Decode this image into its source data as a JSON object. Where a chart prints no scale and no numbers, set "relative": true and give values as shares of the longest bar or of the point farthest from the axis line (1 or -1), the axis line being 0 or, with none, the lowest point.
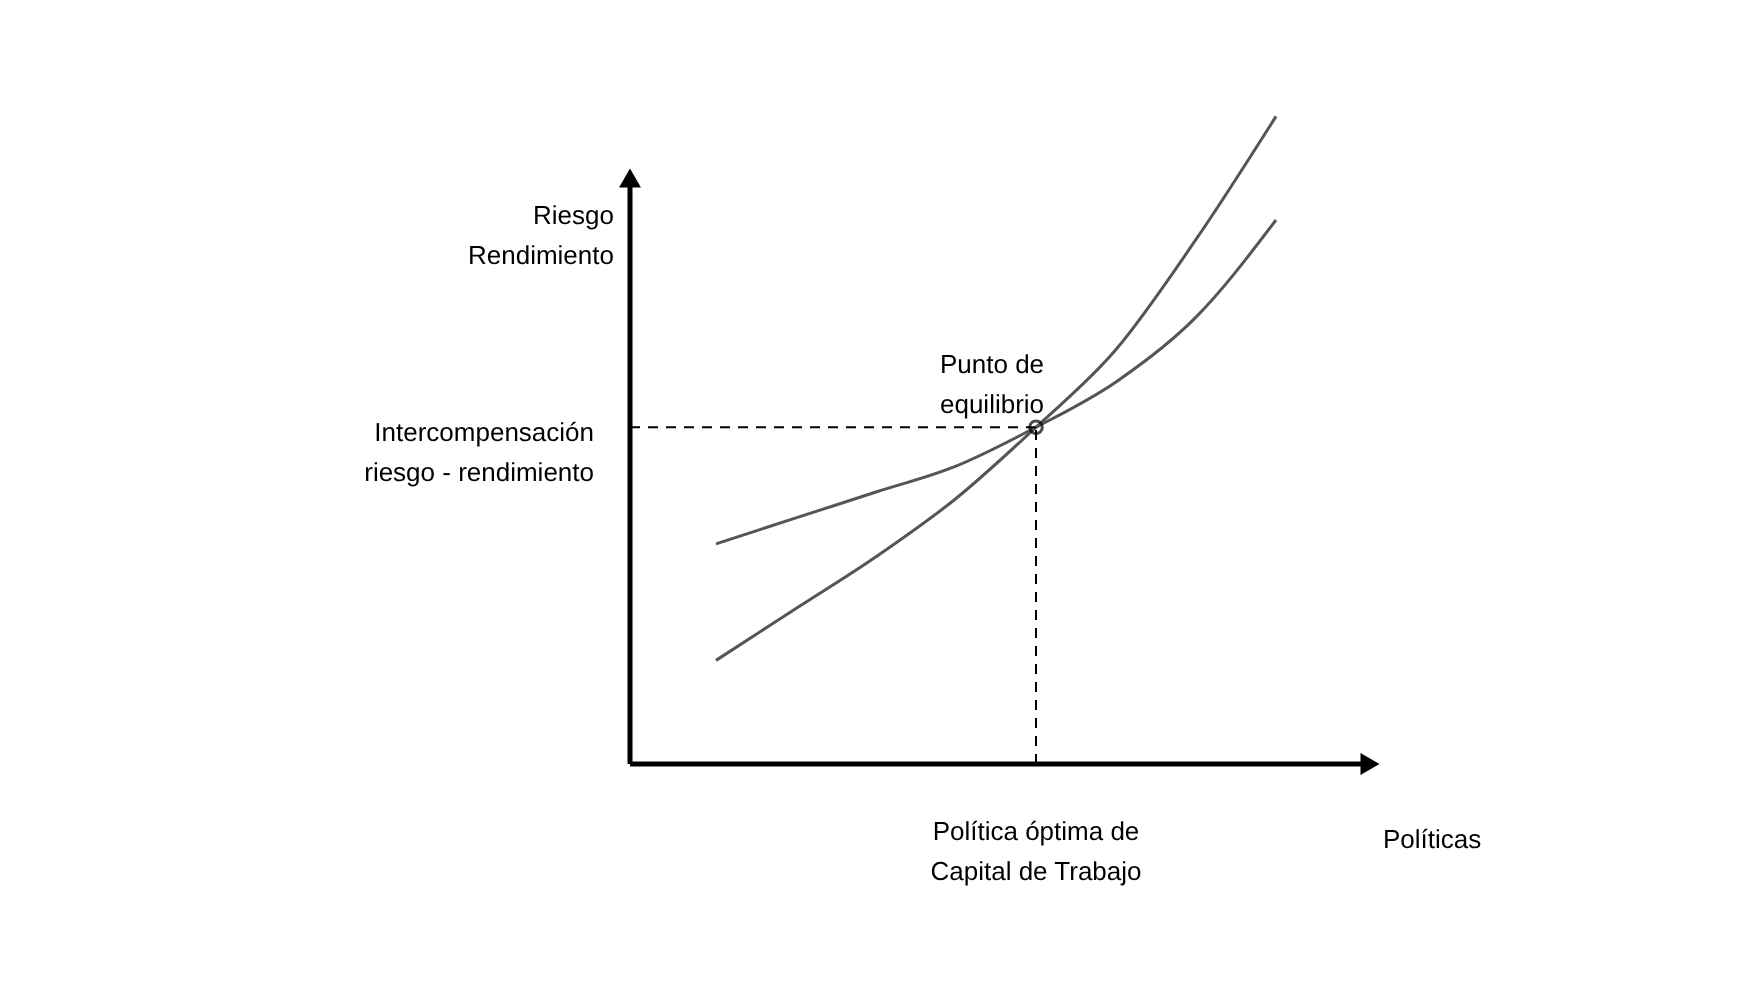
{
  "chart_data": {
    "type": "line",
    "relative": true,
    "xlabel": "Políticas",
    "ylabel": "Riesgo\nRendimiento",
    "categories": [
      null,
      null,
      null,
      null,
      null,
      null,
      null,
      null
    ],
    "series": [
      {
        "color": "#555555",
        "values": [
          0.16,
          0.24,
          0.32,
          0.41,
          0.52,
          0.64,
          0.81,
          1
        ]
      },
      {
        "color": "#555555",
        "values": [
          0.34,
          0.38,
          0.42,
          0.46,
          0.52,
          0.59,
          0.69,
          0.84
        ]
      }
    ],
    "ref_lines": [
      {
        "axis": "y",
        "value": 0.52,
        "label": "Intercompensación\nriesgo - rendimiento",
        "color": "#000000",
        "line_style": "dashed"
      }
    ],
    "annotations": [
      "Punto de\nequilibrio",
      "Política óptima de\nCapital de Trabajo"
    ],
    "marker": "none",
    "line_style": "solid"
  }
}
